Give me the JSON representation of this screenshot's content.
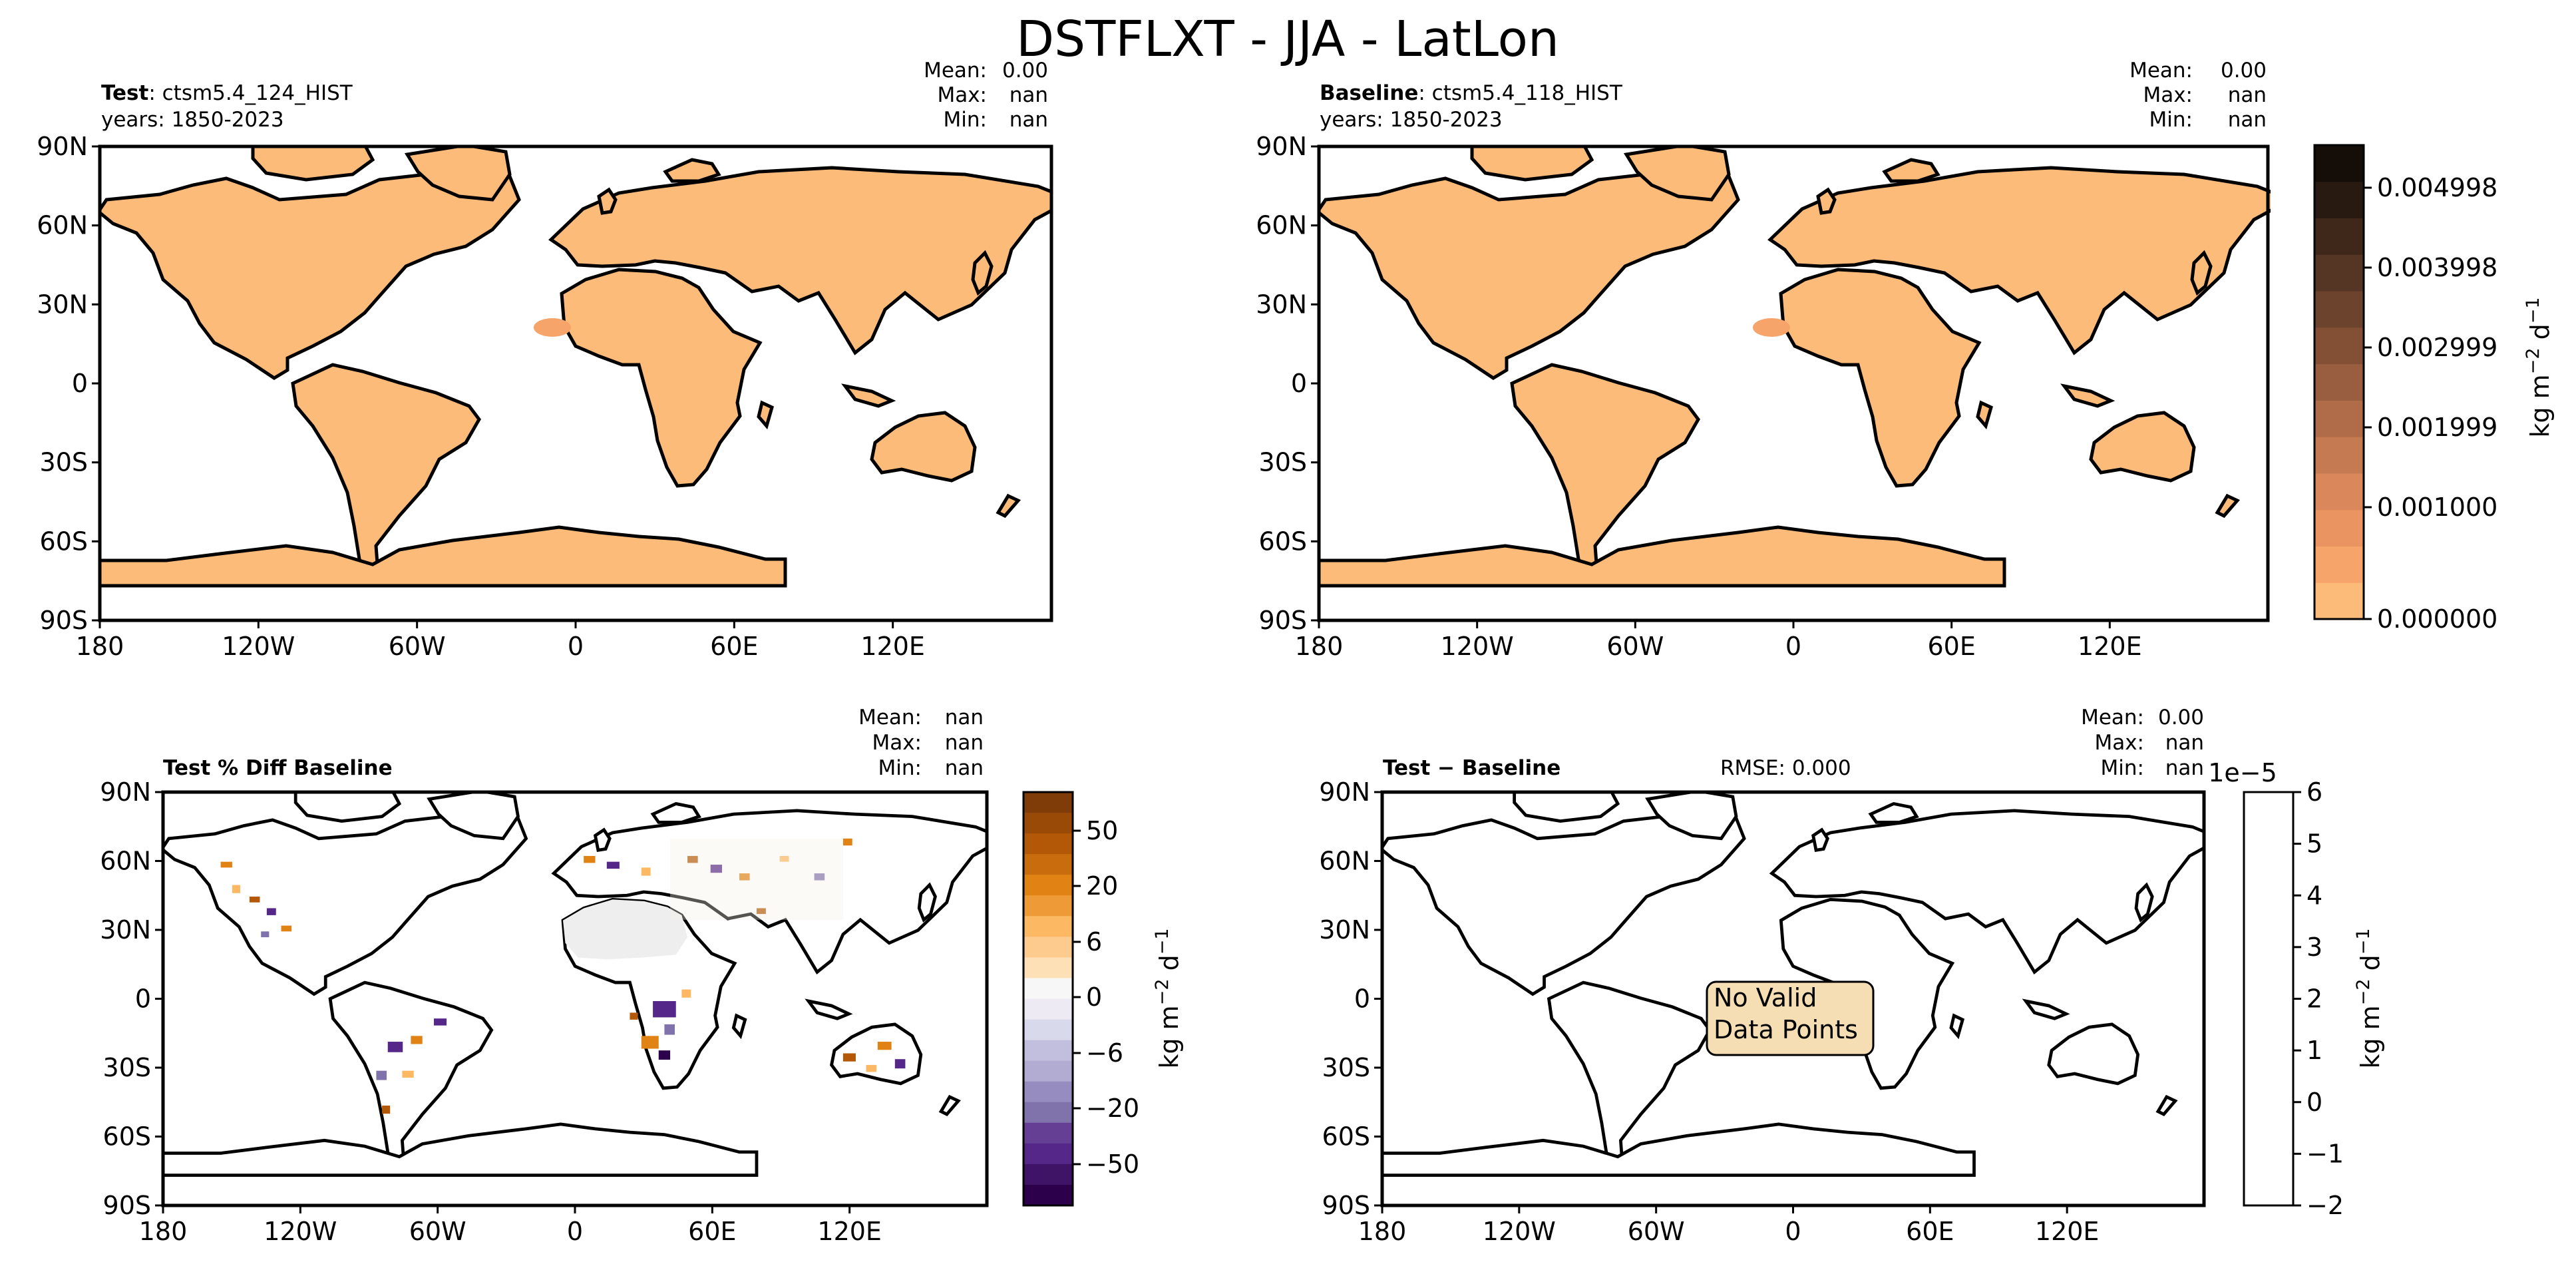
{
  "figure": {
    "title": "DSTFLXT - JJA - LatLon"
  },
  "units_label": "kg m$^{-2}$ d$^{-1}$",
  "colors": {
    "land_fill": "#fdbb7a",
    "coast": "#000000",
    "no_data_box": "#f5deb3"
  },
  "panels": [
    {
      "id": "test",
      "title_bold": "Test",
      "title_rest": ": ctsm5.4_124_HIST",
      "years": "years: 1850-2023",
      "stats": {
        "mean_label": "Mean:",
        "mean": "0.00",
        "max_label": "Max:",
        "max": "nan",
        "min_label": "Min:",
        "min": "nan"
      }
    },
    {
      "id": "baseline",
      "title_bold": "Baseline",
      "title_rest": ": ctsm5.4_118_HIST",
      "years": "years: 1850-2023",
      "stats": {
        "mean_label": "Mean:",
        "mean": "0.00",
        "max_label": "Max:",
        "max": "nan",
        "min_label": "Min:",
        "min": "nan"
      }
    },
    {
      "id": "pctdiff",
      "title_bold": "Test % Diff Baseline",
      "stats": {
        "mean_label": "Mean:",
        "mean": "nan",
        "max_label": "Max:",
        "max": "nan",
        "min_label": "Min:",
        "min": "nan"
      }
    },
    {
      "id": "diff",
      "title_bold": "Test − Baseline",
      "rmse": "RMSE: 0.000",
      "stats": {
        "mean_label": "Mean:",
        "mean": "0.00",
        "max_label": "Max:",
        "max": "nan",
        "min_label": "Min:",
        "min": "nan"
      },
      "annotation_line1": "No Valid",
      "annotation_line2": "Data Points"
    }
  ],
  "chart_data": [
    {
      "type": "heatmap",
      "title": "Test: ctsm5.4_124_HIST",
      "x_ticks": [
        "180",
        "120W",
        "60W",
        "0",
        "60E",
        "120E"
      ],
      "y_ticks": [
        "90N",
        "60N",
        "30N",
        "0",
        "30S",
        "60S",
        "90S"
      ],
      "xlim": [
        -180,
        180
      ],
      "ylim": [
        -90,
        90
      ]
    },
    {
      "type": "heatmap",
      "title": "Baseline: ctsm5.4_118_HIST",
      "x_ticks": [
        "180",
        "120W",
        "60W",
        "0",
        "60E",
        "120E"
      ],
      "y_ticks": [
        "90N",
        "60N",
        "30N",
        "0",
        "30S",
        "60S",
        "90S"
      ],
      "xlim": [
        -180,
        180
      ],
      "ylim": [
        -90,
        90
      ],
      "colorbar": {
        "ticks": [
          "0.004998",
          "0.003998",
          "0.002999",
          "0.001999",
          "0.001000",
          "0.000000"
        ],
        "range": [
          0,
          0.0055
        ],
        "colors": [
          "#fdbb7a",
          "#f7a46b",
          "#ea9462",
          "#d9875b",
          "#c67a52",
          "#b06c48",
          "#995e40",
          "#835036",
          "#6c432d",
          "#553523",
          "#3f281a",
          "#291a11",
          "#150d07"
        ]
      }
    },
    {
      "type": "heatmap",
      "title": "Test % Diff Baseline",
      "x_ticks": [
        "180",
        "120W",
        "60W",
        "0",
        "60E",
        "120E"
      ],
      "y_ticks": [
        "90N",
        "60N",
        "30N",
        "0",
        "30S",
        "60S",
        "90S"
      ],
      "xlim": [
        -180,
        180
      ],
      "ylim": [
        -90,
        90
      ],
      "colorbar": {
        "ticks": [
          "50",
          "20",
          "6",
          "0",
          "−6",
          "−20",
          "−50"
        ],
        "colors": [
          "#7f3b08",
          "#9a4a07",
          "#b35806",
          "#c96c0d",
          "#e08214",
          "#ee9b37",
          "#fdb863",
          "#fdcb8e",
          "#fee0b6",
          "#f7f7f7",
          "#eeeaf3",
          "#d8daeb",
          "#c2bfde",
          "#b2abd2",
          "#978cc0",
          "#8073ac",
          "#643f94",
          "#542788",
          "#3f1466",
          "#2d004b"
        ]
      }
    },
    {
      "type": "heatmap",
      "title": "Test − Baseline",
      "x_ticks": [
        "180",
        "120W",
        "60W",
        "0",
        "60E",
        "120E"
      ],
      "y_ticks": [
        "90N",
        "60N",
        "30N",
        "0",
        "30S",
        "60S",
        "90S"
      ],
      "xlim": [
        -180,
        180
      ],
      "ylim": [
        -90,
        90
      ],
      "colorbar": {
        "offset_label": "1e−5",
        "ticks": [
          "6",
          "5",
          "4",
          "3",
          "2",
          "1",
          "0",
          "−1",
          "−2"
        ],
        "range": [
          -2,
          6
        ]
      }
    }
  ]
}
